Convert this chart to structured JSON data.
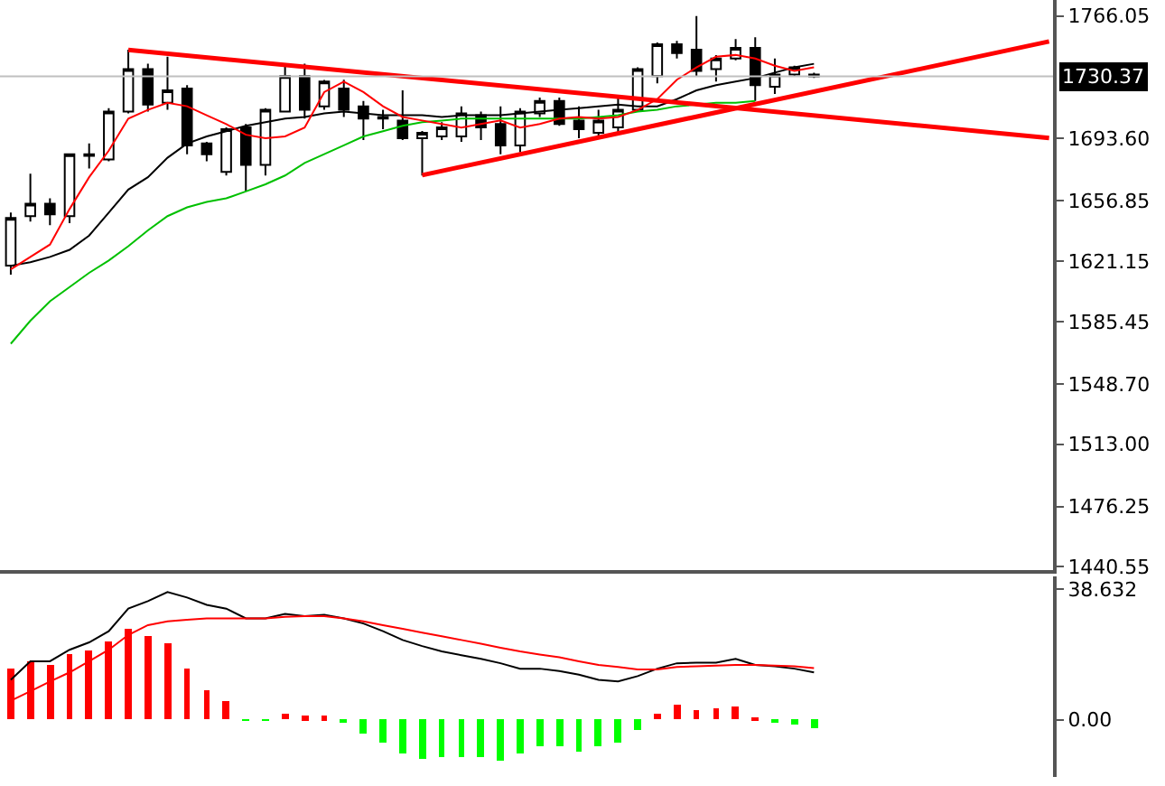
{
  "chart_data": [
    {
      "type": "candlestick",
      "categories": [
        null,
        null,
        null,
        null,
        null,
        null,
        null,
        null,
        null,
        null,
        null,
        null,
        null,
        null,
        null,
        null,
        null,
        null,
        null,
        null,
        null,
        null,
        null,
        null,
        null,
        null,
        null,
        null,
        null,
        null,
        null,
        null,
        null,
        null,
        null,
        null,
        null,
        null,
        null,
        null,
        null,
        null,
        null,
        null,
        null,
        null,
        null,
        null,
        null,
        null,
        null,
        null,
        null,
        null
      ],
      "ohlc": [
        [
          1618.5,
          1649.9,
          1613.2,
          1646.7
        ],
        [
          1647.8,
          1672.9,
          1644.6,
          1655.1
        ],
        [
          1655.1,
          1658.3,
          1642.5,
          1648.8
        ],
        [
          1647.8,
          1684.4,
          1643.6,
          1684.4
        ],
        [
          1683.4,
          1690.7,
          1676.0,
          1684.4
        ],
        [
          1681.3,
          1711.6,
          1680.2,
          1709.6
        ],
        [
          1709.6,
          1746.2,
          1708.5,
          1734.7
        ],
        [
          1734.7,
          1737.8,
          1709.6,
          1713.7
        ],
        [
          1714.8,
          1742.0,
          1710.6,
          1722.1
        ],
        [
          1723.2,
          1725.2,
          1684.4,
          1689.6
        ],
        [
          1690.7,
          1691.7,
          1680.2,
          1684.4
        ],
        [
          1674.0,
          1700.2,
          1671.8,
          1699.1
        ],
        [
          1700.2,
          1702.2,
          1662.4,
          1678.1
        ],
        [
          1678.1,
          1711.6,
          1671.8,
          1710.6
        ],
        [
          1709.6,
          1737.8,
          1709.6,
          1730.5
        ],
        [
          1730.5,
          1737.8,
          1705.4,
          1710.6
        ],
        [
          1712.7,
          1728.3,
          1710.6,
          1727.3
        ],
        [
          1723.2,
          1728.4,
          1706.4,
          1710.6
        ],
        [
          1712.7,
          1715.8,
          1692.8,
          1705.4
        ],
        [
          1706.4,
          1710.6,
          1699.1,
          1705.4
        ],
        [
          1704.3,
          1722.1,
          1692.8,
          1693.8
        ],
        [
          1693.8,
          1698.1,
          1671.8,
          1697.0
        ],
        [
          1694.9,
          1703.3,
          1692.8,
          1700.2
        ],
        [
          1694.9,
          1712.7,
          1691.7,
          1708.5
        ],
        [
          1707.5,
          1709.6,
          1692.8,
          1700.2
        ],
        [
          1702.2,
          1712.7,
          1684.4,
          1689.6
        ],
        [
          1689.6,
          1711.6,
          1685.5,
          1709.6
        ],
        [
          1708.5,
          1717.9,
          1706.4,
          1715.8
        ],
        [
          1715.8,
          1717.9,
          1701.2,
          1702.2
        ],
        [
          1704.3,
          1712.7,
          1693.8,
          1699.1
        ],
        [
          1697.0,
          1710.6,
          1694.9,
          1704.3
        ],
        [
          1700.2,
          1717.9,
          1697.0,
          1710.6
        ],
        [
          1710.6,
          1735.7,
          1709.6,
          1734.7
        ],
        [
          1730.5,
          1750.4,
          1726.2,
          1749.3
        ],
        [
          1749.3,
          1751.4,
          1740.9,
          1744.1
        ],
        [
          1746.2,
          1766.05,
          1730.5,
          1733.6
        ],
        [
          1734.7,
          1743.0,
          1727.3,
          1740.9
        ],
        [
          1740.9,
          1752.4,
          1739.9,
          1747.2
        ],
        [
          1747.2,
          1753.5,
          1715.8,
          1725.2
        ],
        [
          1724.2,
          1740.9,
          1720.0,
          1731.5
        ],
        [
          1731.5,
          1736.7,
          1730.5,
          1735.7
        ],
        [
          1731.5,
          1732.5,
          1729.4,
          1730.37
        ],
        null,
        null,
        null,
        null,
        null,
        null,
        null,
        null,
        null,
        null,
        null,
        null
      ],
      "series": [
        {
          "type": "line",
          "color": "#00c000",
          "values": [
            1572.4,
            1586.0,
            1597.5,
            1605.9,
            1614.3,
            1621.6,
            1630.0,
            1639.4,
            1647.8,
            1653.0,
            1656.2,
            1658.3,
            1662.4,
            1666.6,
            1671.8,
            1679.2,
            1684.4,
            1689.6,
            1694.9,
            1698.0,
            1701.2,
            1703.3,
            1704.3,
            1705.4,
            1705.4,
            1705.4,
            1705.4,
            1705.4,
            1705.4,
            1705.4,
            1706.4,
            1707.4,
            1709.6,
            1710.6,
            1712.7,
            1713.7,
            1714.8,
            1714.8,
            1715.8,
            null,
            null,
            null,
            null,
            null,
            null,
            null,
            null,
            null,
            null,
            null,
            null,
            null,
            null,
            null
          ]
        },
        {
          "type": "line",
          "color": "#000000",
          "values": [
            1618.5,
            1620.6,
            1623.7,
            1627.9,
            1636.3,
            1649.9,
            1663.5,
            1670.8,
            1682.3,
            1690.7,
            1694.9,
            1698.0,
            1701.2,
            1703.3,
            1705.4,
            1706.4,
            1708.5,
            1709.6,
            1708.5,
            1707.4,
            1707.4,
            1707.4,
            1706.4,
            1707.4,
            1707.4,
            1707.4,
            1708.5,
            1709.6,
            1710.6,
            1711.6,
            1712.7,
            1713.7,
            1712.7,
            1712.7,
            1716.9,
            1722.1,
            1725.2,
            1727.3,
            1729.4,
            1732.6,
            1735.7,
            1737.8,
            null,
            null,
            null,
            null,
            null,
            null,
            null,
            null,
            null,
            null,
            null,
            null
          ]
        },
        {
          "type": "line",
          "color": "#ff0000",
          "values": [
            1616.4,
            1623.7,
            1631.0,
            1652.0,
            1670.8,
            1686.5,
            1705.4,
            1710.6,
            1714.8,
            1712.7,
            1707.4,
            1702.2,
            1695.9,
            1693.8,
            1694.9,
            1700.1,
            1721.1,
            1727.3,
            1721.1,
            1712.7,
            1706.4,
            1704.3,
            1702.2,
            1700.1,
            1702.2,
            1704.3,
            1700.1,
            1702.2,
            1705.4,
            1706.4,
            1705.4,
            1706.4,
            1710.6,
            1716.9,
            1728.4,
            1735.7,
            1742.0,
            1743.0,
            1740.9,
            1736.7,
            1733.6,
            1735.7,
            null,
            null,
            null,
            null,
            null,
            null,
            null,
            null,
            null,
            null,
            null,
            null
          ]
        },
        {
          "type": "line",
          "color": "#ff0000",
          "values": [
            null,
            null,
            null,
            null,
            null,
            null,
            1746,
            null,
            null,
            null,
            null,
            null,
            null,
            null,
            null,
            null,
            null,
            null,
            null,
            null,
            null,
            null,
            null,
            null,
            null,
            null,
            null,
            null,
            null,
            null,
            null,
            null,
            null,
            null,
            null,
            null,
            null,
            null,
            null,
            null,
            null,
            null,
            null,
            null,
            null,
            null,
            null,
            null,
            null,
            null,
            null,
            null,
            null,
            1694
          ]
        },
        {
          "type": "line",
          "color": "#ff0000",
          "values": [
            null,
            null,
            null,
            null,
            null,
            null,
            null,
            null,
            null,
            null,
            null,
            null,
            null,
            null,
            null,
            null,
            null,
            null,
            null,
            null,
            null,
            1672,
            null,
            null,
            null,
            null,
            null,
            null,
            null,
            null,
            null,
            null,
            null,
            null,
            null,
            null,
            null,
            null,
            null,
            null,
            null,
            null,
            null,
            null,
            null,
            null,
            null,
            null,
            null,
            null,
            null,
            null,
            null,
            1751
          ]
        }
      ],
      "ylim": [
        1438.5,
        1775.5
      ],
      "yticks": [
        1766.05,
        {
          "value": 1693.6,
          "label": "1693.60"
        },
        1656.85,
        1621.15,
        1585.45,
        {
          "value": 1548.7,
          "label": "1548.70"
        },
        {
          "value": 1513,
          "label": "1513.00"
        },
        1476.25,
        1440.55
      ],
      "ref_lines": [
        {
          "axis": "y",
          "value": 1730.37,
          "label": "1730.37",
          "color": "#c0c0c0"
        }
      ],
      "tick_labels": "y"
    },
    {
      "type": "bar",
      "categories": [
        null,
        null,
        null,
        null,
        null,
        null,
        null,
        null,
        null,
        null,
        null,
        null,
        null,
        null,
        null,
        null,
        null,
        null,
        null,
        null,
        null,
        null,
        null,
        null,
        null,
        null,
        null,
        null,
        null,
        null,
        null,
        null,
        null,
        null,
        null,
        null,
        null,
        null,
        null,
        null,
        null,
        null,
        null,
        null,
        null,
        null,
        null,
        null,
        null,
        null,
        null,
        null,
        null,
        null
      ],
      "series": [
        {
          "type": "bar",
          "values": [
            15.1,
            17.3,
            16.2,
            19.6,
            20.7,
            22.9,
            26.9,
            24.5,
            22.5,
            15.1,
            8.9,
            5.6,
            -0.2,
            -0.2,
            1.8,
            0.9,
            0.9,
            -1.1,
            -4.2,
            -7.1,
            -10.0,
            -11.6,
            -10.9,
            -10.9,
            -10.9,
            -12.0,
            -10.0,
            -8.2,
            -8.2,
            -9.3,
            -8.2,
            -7.1,
            -3.1,
            1.8,
            4.4,
            2.9,
            3.3,
            4.0,
            0.7,
            -1.1,
            -1.6,
            -2.7,
            null,
            null,
            null,
            null,
            null,
            null,
            null,
            null,
            null,
            null,
            null,
            null
          ],
          "colors": [
            "#ff0000",
            "#ff0000",
            "#ff0000",
            "#ff0000",
            "#ff0000",
            "#ff0000",
            "#ff0000",
            "#ff0000",
            "#ff0000",
            "#ff0000",
            "#ff0000",
            "#ff0000",
            "#00ff00",
            "#00ff00",
            "#ff0000",
            "#ff0000",
            "#ff0000",
            "#00ff00",
            "#00ff00",
            "#00ff00",
            "#00ff00",
            "#00ff00",
            "#00ff00",
            "#00ff00",
            "#00ff00",
            "#00ff00",
            "#00ff00",
            "#00ff00",
            "#00ff00",
            "#00ff00",
            "#00ff00",
            "#00ff00",
            "#00ff00",
            "#ff0000",
            "#ff0000",
            "#ff0000",
            "#ff0000",
            "#ff0000",
            "#ff0000",
            "#00ff00",
            "#00ff00",
            "#00ff00",
            null,
            null,
            null,
            null,
            null,
            null,
            null,
            null,
            null,
            null,
            null,
            null
          ]
        },
        {
          "type": "line",
          "color": "#000000",
          "values": [
            11.8,
            17.3,
            17.3,
            20.7,
            22.9,
            26.2,
            32.9,
            35.1,
            37.8,
            36.2,
            34.0,
            32.9,
            30.0,
            30.0,
            31.3,
            30.7,
            31.1,
            30.0,
            28.5,
            26.2,
            23.6,
            21.8,
            20.2,
            19.1,
            18.0,
            16.7,
            15.1,
            15.1,
            14.4,
            13.3,
            11.8,
            11.3,
            12.9,
            15.1,
            16.7,
            16.9,
            16.9,
            18.0,
            16.2,
            15.8,
            15.1,
            14.0,
            null,
            null,
            null,
            null,
            null,
            null,
            null,
            null,
            null,
            null,
            null,
            null
          ]
        },
        {
          "type": "line",
          "color": "#ff0000",
          "values": [
            5.6,
            8.4,
            11.3,
            14.0,
            17.3,
            20.7,
            25.1,
            28.0,
            29.1,
            29.6,
            30.0,
            30.0,
            30.0,
            30.0,
            30.5,
            30.7,
            30.7,
            30.0,
            29.1,
            28.0,
            26.9,
            25.8,
            24.7,
            23.6,
            22.5,
            21.3,
            20.2,
            19.3,
            18.5,
            17.3,
            16.2,
            15.6,
            14.9,
            14.9,
            15.6,
            15.8,
            16.0,
            16.2,
            16.2,
            16.0,
            15.8,
            15.3,
            null,
            null,
            null,
            null,
            null,
            null,
            null,
            null,
            null,
            null,
            null,
            null
          ]
        }
      ],
      "ylim": [
        -17,
        42.4
      ],
      "yticks": [
        38.632,
        {
          "value": 0,
          "label": "0.00"
        }
      ],
      "tick_labels": "y"
    }
  ]
}
